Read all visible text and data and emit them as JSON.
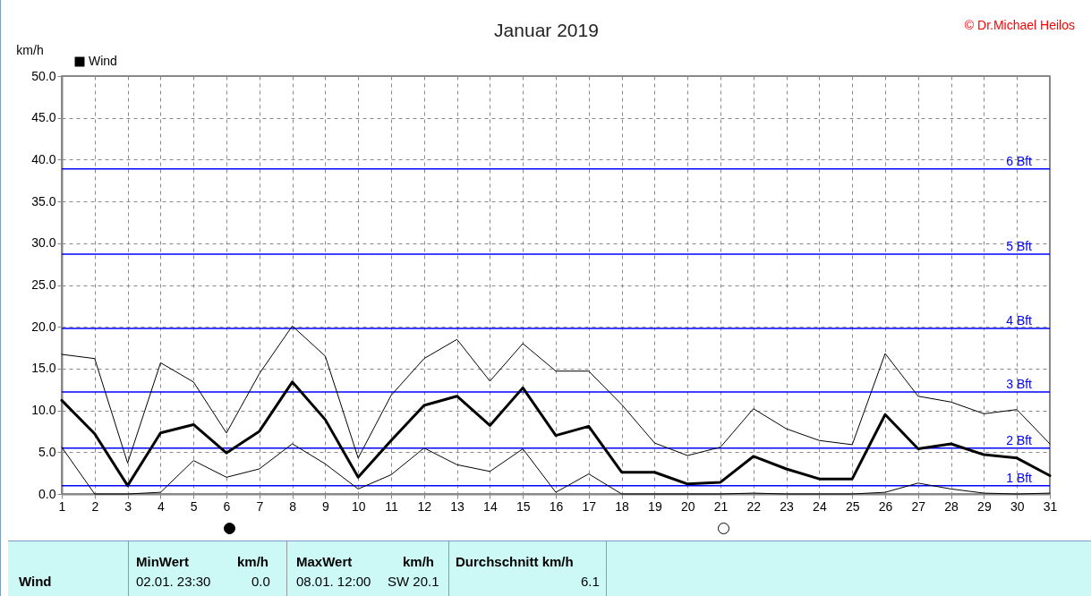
{
  "chart_data": {
    "type": "line",
    "title": "Januar 2019",
    "ylabel": "km/h",
    "x": [
      1,
      2,
      3,
      4,
      5,
      6,
      7,
      8,
      9,
      10,
      11,
      12,
      13,
      14,
      15,
      16,
      17,
      18,
      19,
      20,
      21,
      22,
      23,
      24,
      25,
      26,
      27,
      28,
      29,
      30,
      31
    ],
    "series": [
      {
        "name": "Wind",
        "color": "#000000",
        "values": [
          11.2,
          7.2,
          1.0,
          7.3,
          8.3,
          4.9,
          7.5,
          13.4,
          8.9,
          2.0,
          6.4,
          10.6,
          11.7,
          8.2,
          12.7,
          7.0,
          8.1,
          2.6,
          2.6,
          1.2,
          1.4,
          4.5,
          3.0,
          1.8,
          1.8,
          9.5,
          5.4,
          6.0,
          4.7,
          4.3,
          2.2
        ]
      },
      {
        "color": "#000000",
        "values": [
          16.7,
          16.2,
          3.7,
          15.7,
          13.4,
          7.3,
          14.4,
          20.1,
          16.5,
          4.3,
          11.8,
          16.2,
          18.5,
          13.5,
          18.0,
          14.7,
          14.7,
          10.7,
          6.1,
          4.6,
          5.6,
          10.2,
          7.8,
          6.4,
          5.9,
          16.8,
          11.7,
          11.0,
          9.6,
          10.1,
          6.0
        ]
      },
      {
        "color": "#000000",
        "values": [
          5.6,
          0.0,
          0.0,
          0.2,
          4.0,
          2.0,
          3.0,
          6.0,
          3.6,
          0.6,
          2.3,
          5.5,
          3.5,
          2.7,
          5.4,
          0.2,
          2.4,
          0.0,
          0.0,
          0.0,
          0.0,
          0.1,
          0.0,
          0.0,
          0.0,
          0.2,
          1.3,
          0.6,
          0.1,
          0.0,
          0.1
        ]
      }
    ],
    "xlim": [
      1,
      31
    ],
    "xticks": [
      1,
      2,
      3,
      4,
      5,
      6,
      7,
      8,
      9,
      10,
      11,
      12,
      13,
      14,
      15,
      16,
      17,
      18,
      19,
      20,
      21,
      22,
      23,
      24,
      25,
      26,
      27,
      28,
      29,
      30,
      31
    ],
    "ylim": [
      0,
      50
    ],
    "yticks": [
      {
        "value": 0,
        "label": "0.0"
      },
      {
        "value": 5,
        "label": "5.0"
      },
      {
        "value": 10,
        "label": "10.0"
      },
      {
        "value": 15,
        "label": "15.0"
      },
      {
        "value": 20,
        "label": "20.0"
      },
      {
        "value": 25,
        "label": "25.0"
      },
      {
        "value": 30,
        "label": "30.0"
      },
      {
        "value": 35,
        "label": "35.0"
      },
      {
        "value": 40,
        "label": "40.0"
      },
      {
        "value": 45,
        "label": "45.0"
      },
      {
        "value": 50,
        "label": "50.0"
      }
    ],
    "grid": true,
    "legend": "top left",
    "marker": "none",
    "line_style": "solid",
    "ref_lines": [
      {
        "axis": "y",
        "value": 1.0,
        "label": "1 Bft",
        "color": "#0000ff"
      },
      {
        "axis": "y",
        "value": 5.5,
        "label": "2 Bft",
        "color": "#0000ff"
      },
      {
        "axis": "y",
        "value": 12.2,
        "label": "3 Bft",
        "color": "#0000ff"
      },
      {
        "axis": "y",
        "value": 19.8,
        "label": "4 Bft",
        "color": "#0000ff"
      },
      {
        "axis": "y",
        "value": 28.7,
        "label": "5 Bft",
        "color": "#0000ff"
      },
      {
        "axis": "y",
        "value": 38.9,
        "label": "6 Bft",
        "color": "#0000ff"
      }
    ],
    "annotations": [
      "© Dr.Michael Heilos",
      "Wind",
      "MinWert",
      "km/h",
      "02.01.  23:30",
      "0.0",
      "MaxWert",
      "km/h",
      "08.01.  12:00",
      "SW 20.1",
      "Durchschnitt km/h",
      "6.1"
    ]
  }
}
